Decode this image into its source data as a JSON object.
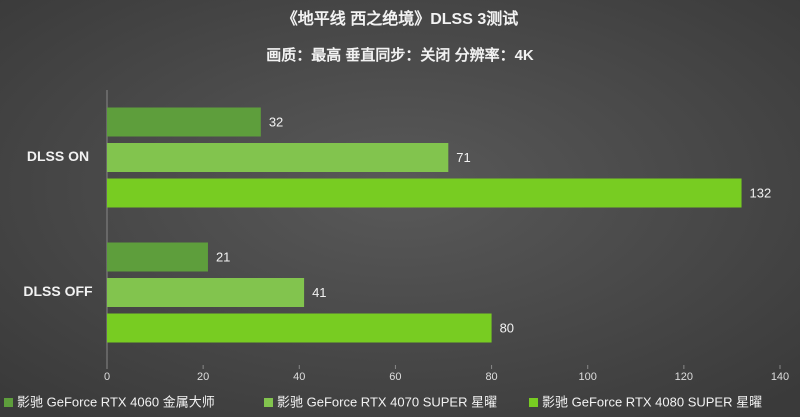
{
  "chart_data": {
    "type": "bar",
    "orientation": "horizontal",
    "title": "《地平线 西之绝境》DLSS 3测试",
    "subtitle": "画质：最高 垂直同步：关闭 分辨率：4K",
    "categories": [
      "DLSS ON",
      "DLSS  OFF"
    ],
    "series": [
      {
        "name": "影驰 GeForce RTX 4060 金属大师",
        "color": "#5e9e3c",
        "values": [
          32,
          21
        ]
      },
      {
        "name": "影驰 GeForce RTX 4070 SUPER 星曜",
        "color": "#82c44e",
        "values": [
          71,
          41
        ]
      },
      {
        "name": "影驰 GeForce RTX 4080 SUPER 星曜",
        "color": "#78cc22",
        "values": [
          132,
          80
        ]
      }
    ],
    "xlim": [
      0,
      140
    ],
    "xticks": [
      0,
      20,
      40,
      60,
      80,
      100,
      120,
      140
    ]
  }
}
